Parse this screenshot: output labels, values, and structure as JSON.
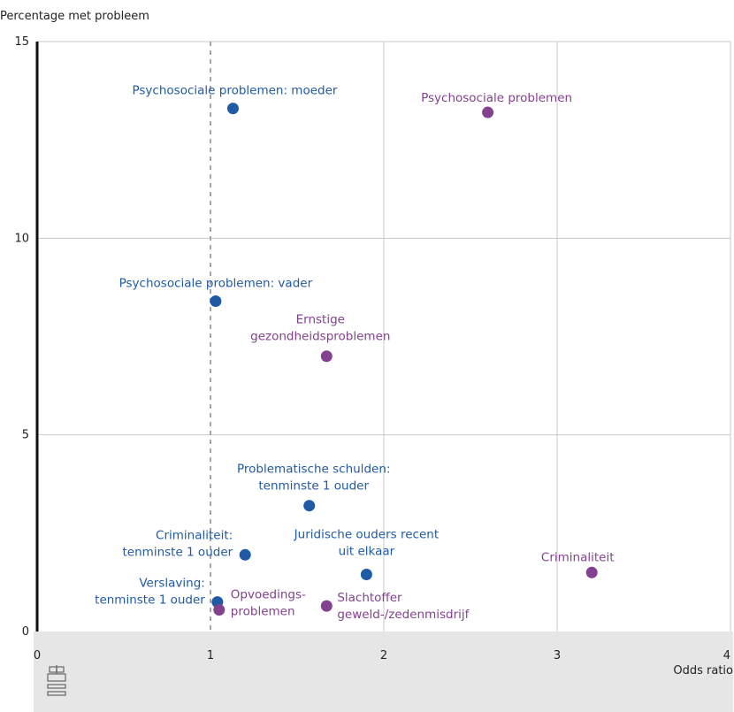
{
  "chart_data": {
    "type": "scatter",
    "ylabel": "Percentage met probleem",
    "xlabel": "Odds ratio",
    "xlim": [
      0,
      4
    ],
    "ylim": [
      0,
      15
    ],
    "xticks": [
      "0",
      "1",
      "2",
      "3",
      "4"
    ],
    "yticks": [
      "0",
      "5",
      "10",
      "15"
    ],
    "reference_line_x": 1,
    "grid": true,
    "colors": {
      "blue": "#1f5aa6",
      "purple": "#83418f",
      "grid": "#c8c8c8",
      "footer": "#e6e6e6",
      "axis": "#111111"
    },
    "points": [
      {
        "label": [
          "Psychosociale problemen: moeder"
        ],
        "x": 1.13,
        "y": 13.3,
        "color": "blue"
      },
      {
        "label": [
          "Psychosociale problemen"
        ],
        "x": 2.6,
        "y": 13.2,
        "color": "purple"
      },
      {
        "label": [
          "Psychosociale problemen: vader"
        ],
        "x": 1.03,
        "y": 8.4,
        "color": "blue"
      },
      {
        "label": [
          "Ernstige",
          "gezondheidsproblemen"
        ],
        "x": 1.67,
        "y": 7.0,
        "color": "purple"
      },
      {
        "label": [
          "Problematische schulden:",
          "tenminste 1 ouder"
        ],
        "x": 1.57,
        "y": 3.2,
        "color": "blue"
      },
      {
        "label": [
          "Criminaliteit:",
          "tenminste 1 ouder"
        ],
        "x": 1.2,
        "y": 1.95,
        "color": "blue"
      },
      {
        "label": [
          "Juridische ouders recent",
          "uit elkaar"
        ],
        "x": 1.9,
        "y": 1.45,
        "color": "blue"
      },
      {
        "label": [
          "Criminaliteit"
        ],
        "x": 3.2,
        "y": 1.5,
        "color": "purple"
      },
      {
        "label": [
          "Verslaving:",
          "tenminste 1 ouder"
        ],
        "x": 1.04,
        "y": 0.75,
        "color": "blue"
      },
      {
        "label": [
          "Opvoedings-",
          "problemen"
        ],
        "x": 1.05,
        "y": 0.55,
        "color": "purple"
      },
      {
        "label": [
          "Slachtoffer",
          "geweld-/zedenmisdrijf"
        ],
        "x": 1.67,
        "y": 0.65,
        "color": "purple"
      }
    ]
  },
  "logo": {
    "name": "cbs-logo-icon",
    "text": "cbs"
  }
}
